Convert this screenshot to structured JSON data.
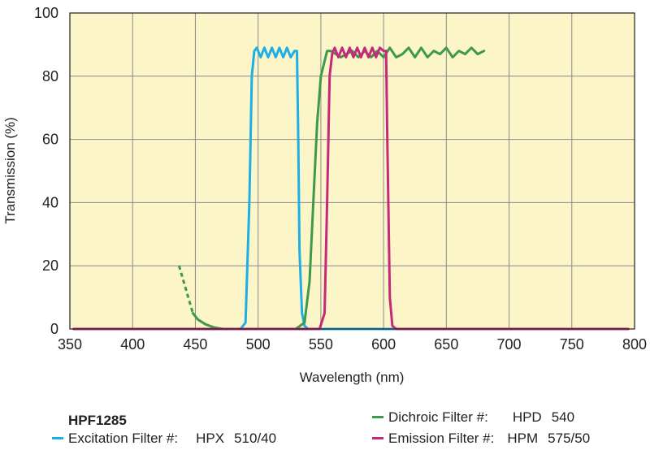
{
  "model": "HPF1285",
  "legend": {
    "excitation": {
      "label": "Excitation Filter #:",
      "code": "HPX",
      "value": "510/40",
      "color": "#1eaee6"
    },
    "dichroic": {
      "label": "Dichroic Filter #:",
      "code": "HPD",
      "value": "540",
      "color": "#3d9a4b"
    },
    "emission": {
      "label": "Emission Filter #:",
      "code": "HPM",
      "value": "575/50",
      "color": "#c8287a"
    }
  },
  "colors": {
    "plot_background": "#fbf5c8",
    "grid": "#8a8a8a",
    "axis": "#231f20"
  },
  "chart_data": {
    "type": "line",
    "title": "",
    "xlabel": "Wavelength (nm)",
    "ylabel": "Transmission (%)",
    "xlim": [
      350,
      800
    ],
    "ylim": [
      0,
      100
    ],
    "xticks": [
      350,
      400,
      450,
      500,
      550,
      600,
      650,
      700,
      750,
      800
    ],
    "yticks": [
      0,
      20,
      40,
      60,
      80,
      100
    ],
    "grid": true,
    "series": [
      {
        "key": "excitation",
        "color": "#1eaee6",
        "x": [
          353,
          470,
          486,
          490,
          493,
          495,
          497,
          499,
          502,
          505,
          508,
          511,
          514,
          517,
          520,
          523,
          526,
          529,
          531,
          532,
          533,
          535,
          537,
          540,
          545,
          560,
          600,
          700,
          795
        ],
        "y": [
          0,
          0,
          0,
          2,
          40,
          80,
          88,
          89,
          86,
          89,
          86,
          89,
          86,
          89,
          86,
          89,
          86,
          88,
          88,
          60,
          25,
          5,
          1,
          0,
          0,
          0,
          0,
          0,
          0
        ]
      },
      {
        "key": "dichroic",
        "color": "#3d9a4b",
        "dashed_x": [
          437,
          448
        ],
        "dashed_y": [
          20,
          5
        ],
        "x": [
          448,
          452,
          458,
          465,
          472,
          480,
          490,
          500,
          510,
          520,
          530,
          537,
          541,
          544,
          547,
          550,
          555,
          558,
          562,
          566,
          570,
          575,
          580,
          585,
          590,
          595,
          600,
          605,
          610,
          615,
          620,
          625,
          630,
          635,
          640,
          645,
          650,
          655,
          660,
          665,
          670,
          675,
          680
        ],
        "y": [
          5,
          3,
          1.5,
          0.5,
          0,
          0,
          0,
          0,
          0,
          0,
          0,
          2,
          15,
          40,
          65,
          80,
          88,
          88,
          87,
          86,
          87,
          88,
          86,
          88,
          86,
          88,
          86,
          89,
          86,
          87,
          89,
          86,
          89,
          86,
          88,
          87,
          89,
          86,
          88,
          87,
          89,
          87,
          88
        ]
      },
      {
        "key": "emission",
        "color": "#c8287a",
        "x": [
          353,
          540,
          549,
          553,
          555,
          557,
          559,
          561,
          564,
          567,
          570,
          573,
          576,
          579,
          582,
          585,
          588,
          591,
          594,
          597,
          600,
          602,
          603,
          605,
          607,
          610,
          620,
          700,
          795
        ],
        "y": [
          0,
          0,
          0,
          5,
          40,
          80,
          87,
          89,
          86,
          89,
          86,
          89,
          86,
          89,
          86,
          89,
          86,
          89,
          86,
          89,
          88,
          88,
          60,
          10,
          1,
          0,
          0,
          0,
          0
        ]
      }
    ]
  }
}
